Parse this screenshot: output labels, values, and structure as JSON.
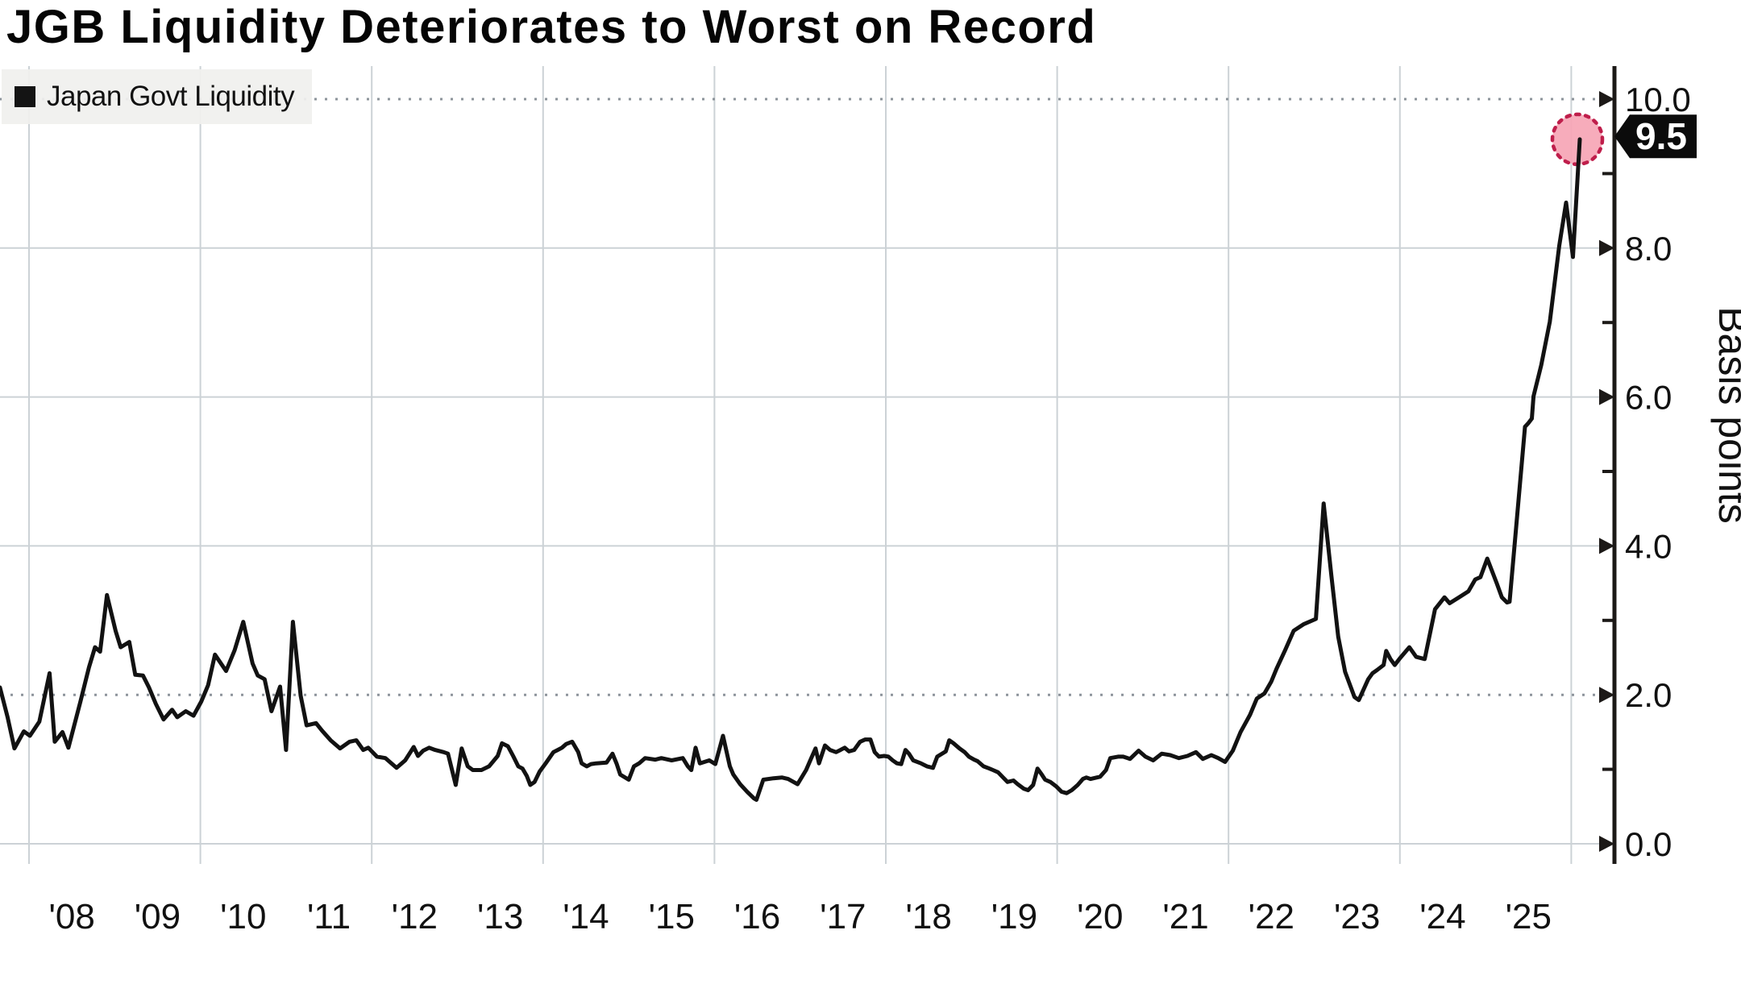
{
  "title": "JGB Liquidity Deteriorates to Worst on Record",
  "legend": {
    "label": "Japan Govt Liquidity",
    "swatch_color": "#141414"
  },
  "y_axis": {
    "title": "Basis points",
    "major_tick_values": [
      10,
      8,
      6,
      4,
      2,
      0
    ],
    "major_tick_labels": [
      "10.0",
      "8.0",
      "6.0",
      "4.0",
      "2.0",
      "0.0"
    ],
    "minor_tick_values": [
      9,
      7,
      5,
      3,
      1
    ],
    "range": [
      0,
      10
    ],
    "dotted_gridline_values": [
      10,
      2
    ],
    "solid_gridline_values": [
      8,
      6,
      4,
      0
    ]
  },
  "x_axis": {
    "tick_labels": [
      "'08",
      "'09",
      "'10",
      "'11",
      "'12",
      "'13",
      "'14",
      "'15",
      "'16",
      "'17",
      "'18",
      "'19",
      "'20",
      "'21",
      "'22",
      "'23",
      "'24",
      "'25"
    ],
    "tick_years": [
      2008,
      2009,
      2010,
      2011,
      2012,
      2013,
      2014,
      2015,
      2016,
      2017,
      2018,
      2019,
      2020,
      2021,
      2022,
      2023,
      2024,
      2025
    ],
    "gridline_years": [
      2008,
      2010,
      2012,
      2014,
      2016,
      2018,
      2020,
      2022,
      2024,
      2026
    ]
  },
  "last_value_badge": {
    "text": "9.5",
    "value": 9.5,
    "bg": "#0b0b0b",
    "fg": "#ffffff"
  },
  "marker": {
    "fill": "#f6a5b5",
    "stroke": "#bf1e4b",
    "value": 9.46
  },
  "colors": {
    "line": "#121212",
    "axis": "#1c1917",
    "grid_solid": "#ccd2d6",
    "grid_dotted": "#8d949b",
    "text": "#111111",
    "background": "#ffffff"
  },
  "chart_data": {
    "type": "line",
    "title": "JGB Liquidity Deteriorates to Worst on Record",
    "ylabel": "Basis points",
    "ylim": [
      0,
      10
    ],
    "grid": "on",
    "legend_position": "top-left",
    "series": [
      {
        "name": "Japan Govt Liquidity",
        "points": [
          [
            2007.66,
            2.1
          ],
          [
            2007.75,
            1.7
          ],
          [
            2007.83,
            1.28
          ],
          [
            2007.94,
            1.51
          ],
          [
            2008.01,
            1.45
          ],
          [
            2008.12,
            1.64
          ],
          [
            2008.24,
            2.29
          ],
          [
            2008.3,
            1.37
          ],
          [
            2008.39,
            1.5
          ],
          [
            2008.46,
            1.29
          ],
          [
            2008.6,
            1.91
          ],
          [
            2008.7,
            2.37
          ],
          [
            2008.77,
            2.64
          ],
          [
            2008.83,
            2.58
          ],
          [
            2008.91,
            3.34
          ],
          [
            2009.01,
            2.86
          ],
          [
            2009.07,
            2.64
          ],
          [
            2009.17,
            2.71
          ],
          [
            2009.24,
            2.27
          ],
          [
            2009.33,
            2.26
          ],
          [
            2009.4,
            2.1
          ],
          [
            2009.48,
            1.88
          ],
          [
            2009.57,
            1.67
          ],
          [
            2009.67,
            1.8
          ],
          [
            2009.73,
            1.7
          ],
          [
            2009.83,
            1.78
          ],
          [
            2009.92,
            1.72
          ],
          [
            2010.01,
            1.91
          ],
          [
            2010.09,
            2.13
          ],
          [
            2010.17,
            2.54
          ],
          [
            2010.3,
            2.32
          ],
          [
            2010.4,
            2.6
          ],
          [
            2010.5,
            2.98
          ],
          [
            2010.61,
            2.42
          ],
          [
            2010.67,
            2.26
          ],
          [
            2010.75,
            2.21
          ],
          [
            2010.83,
            1.78
          ],
          [
            2010.93,
            2.11
          ],
          [
            2011.0,
            1.26
          ],
          [
            2011.08,
            2.98
          ],
          [
            2011.17,
            1.99
          ],
          [
            2011.24,
            1.59
          ],
          [
            2011.35,
            1.62
          ],
          [
            2011.42,
            1.52
          ],
          [
            2011.52,
            1.39
          ],
          [
            2011.63,
            1.28
          ],
          [
            2011.74,
            1.37
          ],
          [
            2011.82,
            1.39
          ],
          [
            2011.9,
            1.26
          ],
          [
            2011.96,
            1.29
          ],
          [
            2012.06,
            1.17
          ],
          [
            2012.16,
            1.15
          ],
          [
            2012.29,
            1.02
          ],
          [
            2012.39,
            1.12
          ],
          [
            2012.49,
            1.3
          ],
          [
            2012.54,
            1.18
          ],
          [
            2012.6,
            1.25
          ],
          [
            2012.67,
            1.29
          ],
          [
            2012.74,
            1.26
          ],
          [
            2012.84,
            1.23
          ],
          [
            2012.89,
            1.21
          ],
          [
            2012.98,
            0.79
          ],
          [
            2013.05,
            1.28
          ],
          [
            2013.12,
            1.04
          ],
          [
            2013.18,
            0.99
          ],
          [
            2013.28,
            0.99
          ],
          [
            2013.37,
            1.04
          ],
          [
            2013.47,
            1.18
          ],
          [
            2013.52,
            1.35
          ],
          [
            2013.59,
            1.31
          ],
          [
            2013.65,
            1.18
          ],
          [
            2013.71,
            1.04
          ],
          [
            2013.76,
            1.01
          ],
          [
            2013.81,
            0.91
          ],
          [
            2013.85,
            0.79
          ],
          [
            2013.9,
            0.83
          ],
          [
            2013.96,
            0.97
          ],
          [
            2014.03,
            1.08
          ],
          [
            2014.12,
            1.23
          ],
          [
            2014.17,
            1.26
          ],
          [
            2014.22,
            1.29
          ],
          [
            2014.27,
            1.34
          ],
          [
            2014.34,
            1.37
          ],
          [
            2014.41,
            1.23
          ],
          [
            2014.45,
            1.08
          ],
          [
            2014.51,
            1.04
          ],
          [
            2014.56,
            1.07
          ],
          [
            2014.62,
            1.08
          ],
          [
            2014.74,
            1.09
          ],
          [
            2014.81,
            1.21
          ],
          [
            2014.86,
            1.07
          ],
          [
            2014.9,
            0.93
          ],
          [
            2015.0,
            0.86
          ],
          [
            2015.06,
            1.04
          ],
          [
            2015.12,
            1.08
          ],
          [
            2015.19,
            1.15
          ],
          [
            2015.31,
            1.13
          ],
          [
            2015.38,
            1.15
          ],
          [
            2015.5,
            1.12
          ],
          [
            2015.63,
            1.15
          ],
          [
            2015.69,
            1.04
          ],
          [
            2015.73,
            0.99
          ],
          [
            2015.78,
            1.29
          ],
          [
            2015.83,
            1.08
          ],
          [
            2015.94,
            1.12
          ],
          [
            2016.01,
            1.07
          ],
          [
            2016.1,
            1.45
          ],
          [
            2016.18,
            1.04
          ],
          [
            2016.22,
            0.93
          ],
          [
            2016.3,
            0.8
          ],
          [
            2016.38,
            0.7
          ],
          [
            2016.46,
            0.61
          ],
          [
            2016.49,
            0.59
          ],
          [
            2016.57,
            0.86
          ],
          [
            2016.69,
            0.88
          ],
          [
            2016.79,
            0.89
          ],
          [
            2016.86,
            0.87
          ],
          [
            2016.97,
            0.8
          ],
          [
            2017.07,
            0.99
          ],
          [
            2017.13,
            1.15
          ],
          [
            2017.18,
            1.28
          ],
          [
            2017.22,
            1.08
          ],
          [
            2017.29,
            1.32
          ],
          [
            2017.35,
            1.26
          ],
          [
            2017.42,
            1.23
          ],
          [
            2017.47,
            1.26
          ],
          [
            2017.52,
            1.29
          ],
          [
            2017.57,
            1.24
          ],
          [
            2017.63,
            1.26
          ],
          [
            2017.7,
            1.37
          ],
          [
            2017.76,
            1.4
          ],
          [
            2017.82,
            1.4
          ],
          [
            2017.87,
            1.23
          ],
          [
            2017.92,
            1.17
          ],
          [
            2017.98,
            1.18
          ],
          [
            2018.03,
            1.17
          ],
          [
            2018.08,
            1.12
          ],
          [
            2018.13,
            1.08
          ],
          [
            2018.18,
            1.07
          ],
          [
            2018.23,
            1.26
          ],
          [
            2018.27,
            1.21
          ],
          [
            2018.32,
            1.12
          ],
          [
            2018.41,
            1.08
          ],
          [
            2018.48,
            1.04
          ],
          [
            2018.55,
            1.02
          ],
          [
            2018.6,
            1.17
          ],
          [
            2018.7,
            1.24
          ],
          [
            2018.74,
            1.39
          ],
          [
            2018.79,
            1.35
          ],
          [
            2018.86,
            1.28
          ],
          [
            2018.92,
            1.23
          ],
          [
            2018.97,
            1.17
          ],
          [
            2019.03,
            1.13
          ],
          [
            2019.07,
            1.11
          ],
          [
            2019.14,
            1.04
          ],
          [
            2019.21,
            1.01
          ],
          [
            2019.25,
            0.99
          ],
          [
            2019.31,
            0.96
          ],
          [
            2019.36,
            0.9
          ],
          [
            2019.42,
            0.83
          ],
          [
            2019.49,
            0.85
          ],
          [
            2019.54,
            0.8
          ],
          [
            2019.61,
            0.74
          ],
          [
            2019.66,
            0.72
          ],
          [
            2019.72,
            0.79
          ],
          [
            2019.77,
            1.01
          ],
          [
            2019.82,
            0.93
          ],
          [
            2019.86,
            0.86
          ],
          [
            2019.92,
            0.83
          ],
          [
            2019.99,
            0.77
          ],
          [
            2020.05,
            0.7
          ],
          [
            2020.11,
            0.68
          ],
          [
            2020.17,
            0.72
          ],
          [
            2020.24,
            0.79
          ],
          [
            2020.3,
            0.87
          ],
          [
            2020.34,
            0.89
          ],
          [
            2020.39,
            0.87
          ],
          [
            2020.5,
            0.9
          ],
          [
            2020.57,
            0.99
          ],
          [
            2020.62,
            1.15
          ],
          [
            2020.71,
            1.17
          ],
          [
            2020.77,
            1.17
          ],
          [
            2020.85,
            1.14
          ],
          [
            2020.95,
            1.25
          ],
          [
            2021.03,
            1.17
          ],
          [
            2021.12,
            1.12
          ],
          [
            2021.22,
            1.21
          ],
          [
            2021.32,
            1.19
          ],
          [
            2021.42,
            1.15
          ],
          [
            2021.52,
            1.18
          ],
          [
            2021.62,
            1.23
          ],
          [
            2021.7,
            1.14
          ],
          [
            2021.8,
            1.19
          ],
          [
            2021.88,
            1.15
          ],
          [
            2021.96,
            1.1
          ],
          [
            2022.05,
            1.25
          ],
          [
            2022.14,
            1.5
          ],
          [
            2022.25,
            1.73
          ],
          [
            2022.33,
            1.95
          ],
          [
            2022.42,
            2.02
          ],
          [
            2022.5,
            2.18
          ],
          [
            2022.56,
            2.35
          ],
          [
            2022.66,
            2.6
          ],
          [
            2022.76,
            2.86
          ],
          [
            2022.88,
            2.95
          ],
          [
            2023.02,
            3.02
          ],
          [
            2023.11,
            4.57
          ],
          [
            2023.2,
            3.6
          ],
          [
            2023.28,
            2.78
          ],
          [
            2023.36,
            2.31
          ],
          [
            2023.47,
            1.97
          ],
          [
            2023.52,
            1.93
          ],
          [
            2023.63,
            2.21
          ],
          [
            2023.68,
            2.29
          ],
          [
            2023.73,
            2.33
          ],
          [
            2023.81,
            2.4
          ],
          [
            2023.84,
            2.59
          ],
          [
            2023.89,
            2.48
          ],
          [
            2023.94,
            2.4
          ],
          [
            2024.0,
            2.49
          ],
          [
            2024.11,
            2.64
          ],
          [
            2024.19,
            2.51
          ],
          [
            2024.29,
            2.48
          ],
          [
            2024.41,
            3.15
          ],
          [
            2024.52,
            3.31
          ],
          [
            2024.58,
            3.23
          ],
          [
            2024.69,
            3.31
          ],
          [
            2024.8,
            3.39
          ],
          [
            2024.88,
            3.55
          ],
          [
            2024.94,
            3.58
          ],
          [
            2025.02,
            3.83
          ],
          [
            2025.13,
            3.5
          ],
          [
            2025.19,
            3.31
          ],
          [
            2025.25,
            3.24
          ],
          [
            2025.28,
            3.25
          ],
          [
            2025.46,
            5.6
          ],
          [
            2025.5,
            5.65
          ],
          [
            2025.54,
            5.71
          ],
          [
            2025.56,
            6.01
          ],
          [
            2025.65,
            6.43
          ],
          [
            2025.75,
            7.01
          ],
          [
            2025.86,
            8.03
          ],
          [
            2025.94,
            8.61
          ],
          [
            2026.02,
            7.88
          ],
          [
            2026.1,
            9.46
          ]
        ]
      }
    ],
    "annotations": [
      {
        "type": "last-value-flag",
        "text": "9.5"
      },
      {
        "type": "point-highlight",
        "style": "pink dotted circle on final point"
      }
    ]
  }
}
